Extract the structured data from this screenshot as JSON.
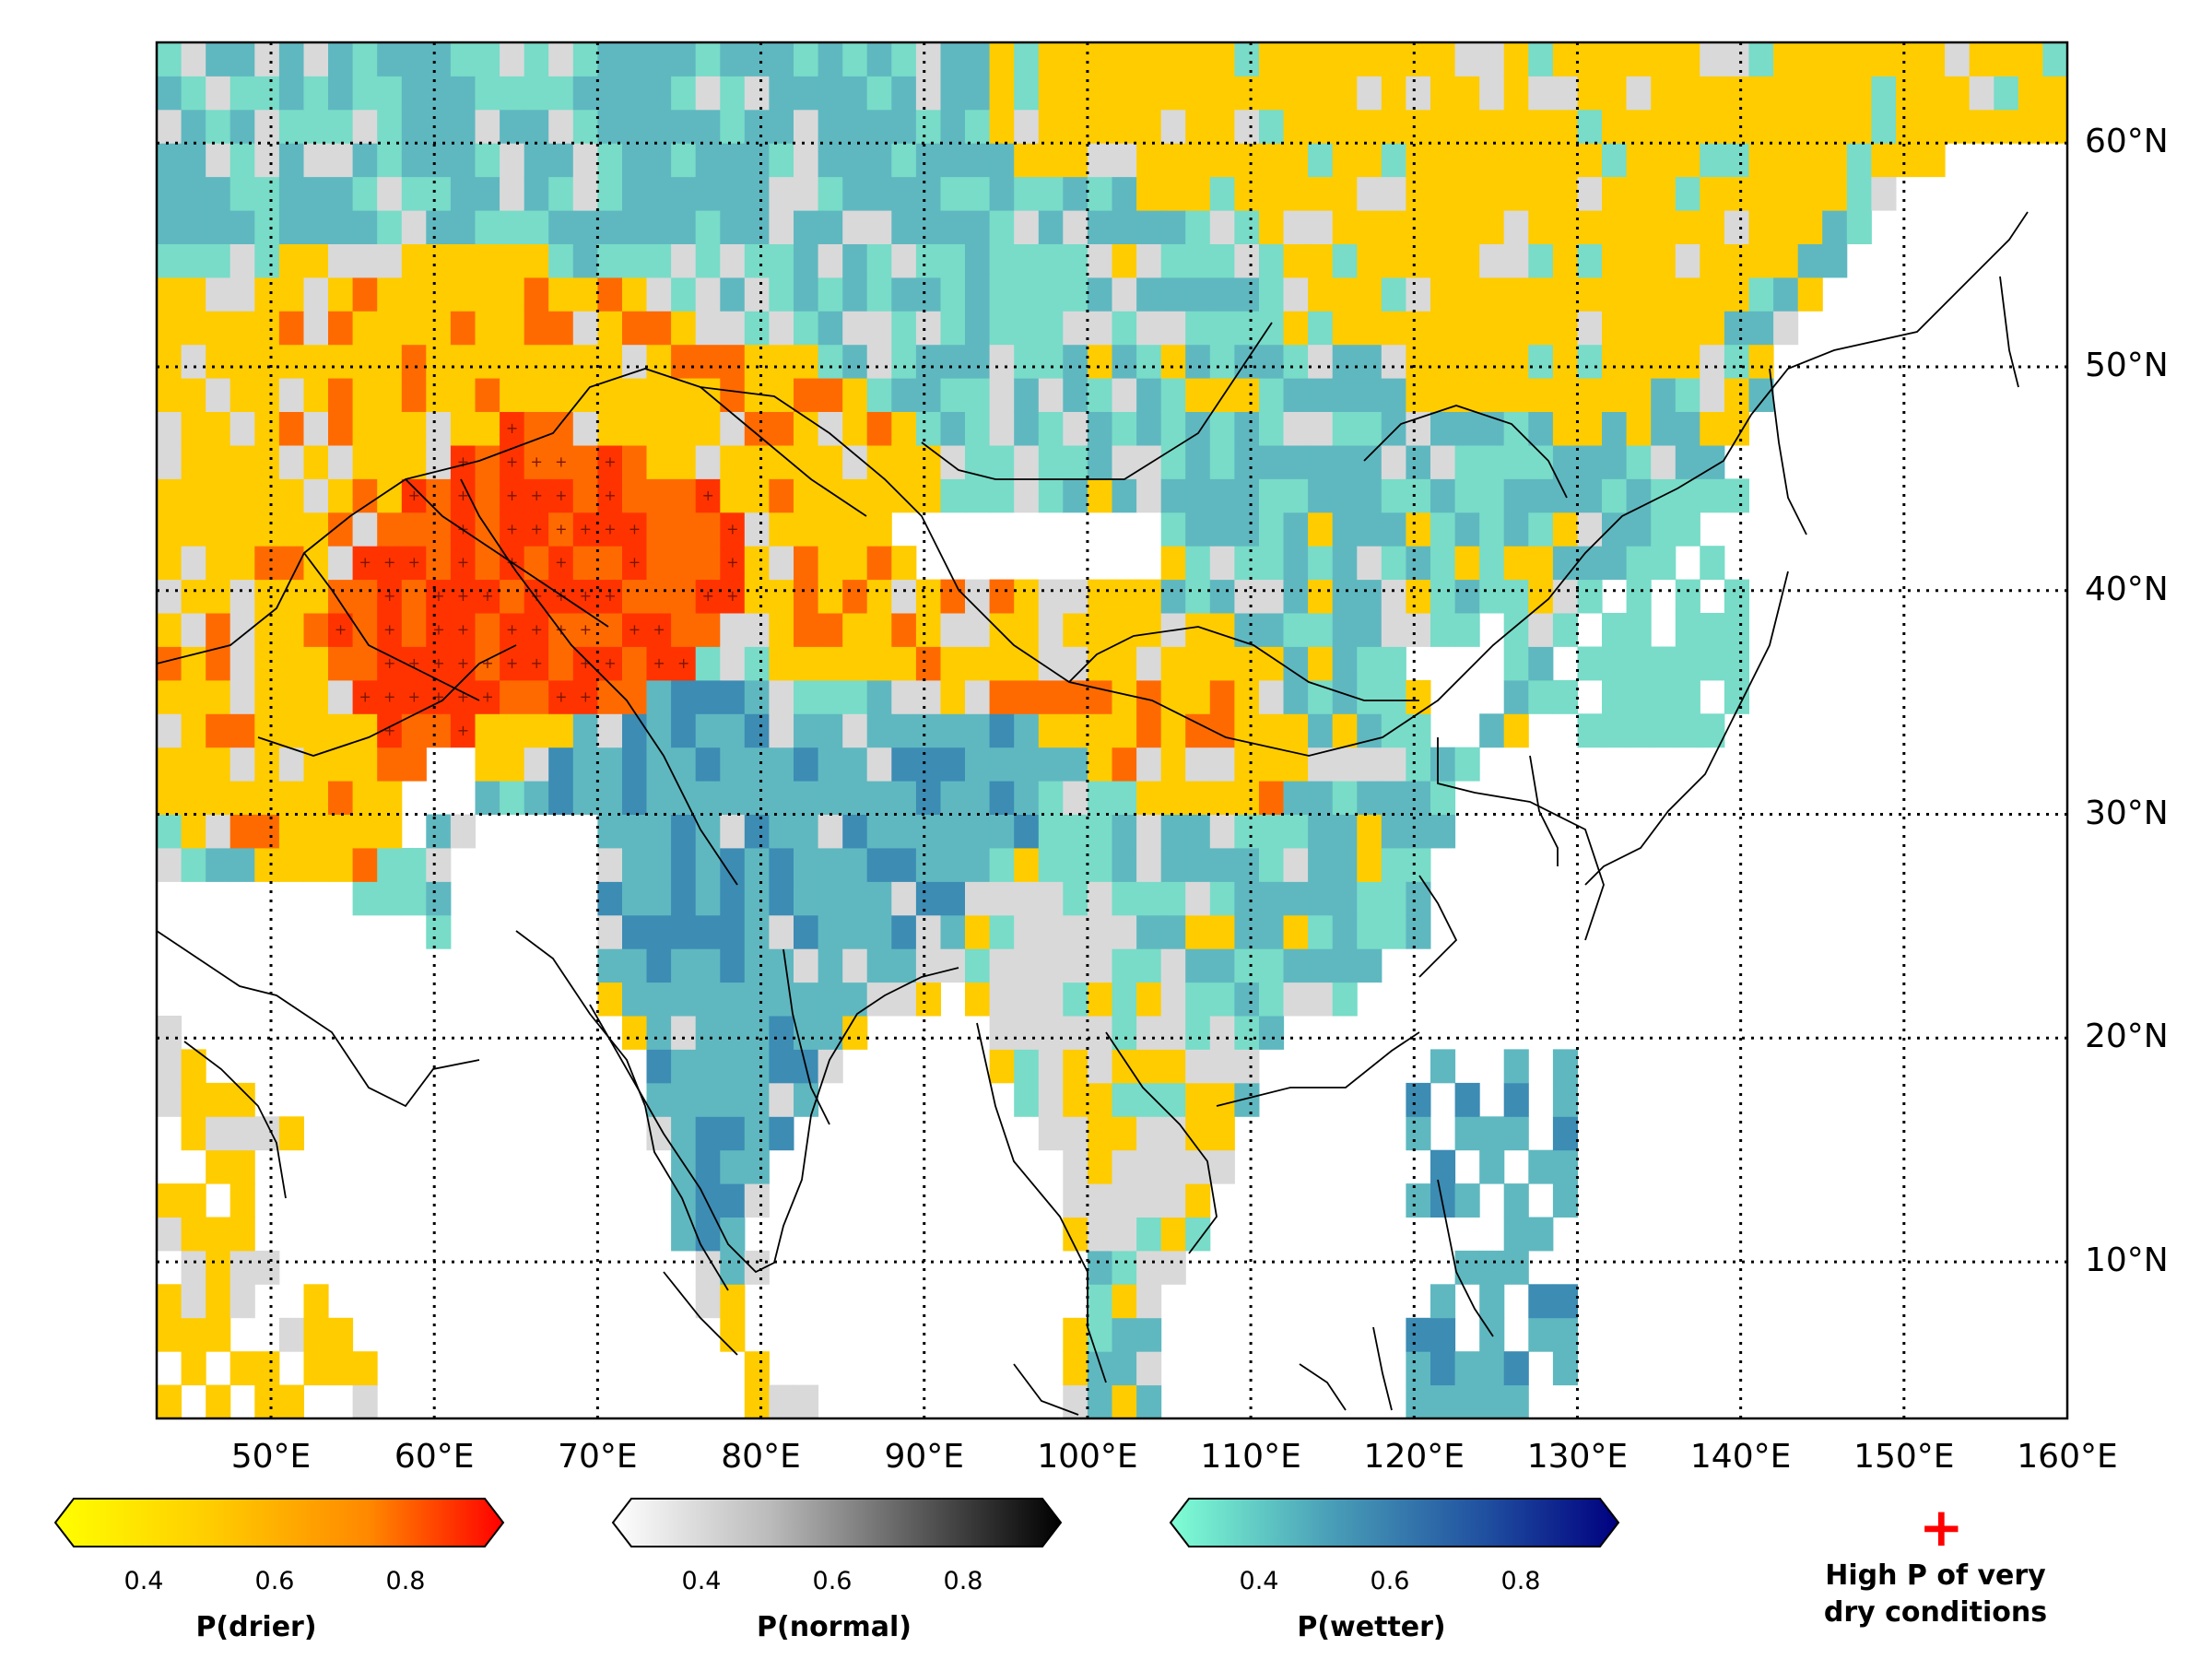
{
  "map": {
    "lon_range": [
      43,
      160
    ],
    "lat_range": [
      3,
      64.5
    ],
    "lon_labels": [
      "50°E",
      "60°E",
      "70°E",
      "80°E",
      "90°E",
      "100°E",
      "110°E",
      "120°E",
      "130°E",
      "140°E",
      "150°E",
      "160°E"
    ],
    "lat_labels": [
      "60°N",
      "50°N",
      "40°N",
      "30°N",
      "20°N",
      "10°N"
    ],
    "categories": {
      "drier": {
        "base": "#ffcc00",
        "strong": "#ff6a00",
        "extreme": "#ff3300"
      },
      "normal": "#d9d9d9",
      "wetter": {
        "light": "#78dcc8",
        "mid": "#5fb8c0",
        "dark": "#3c8cb4"
      },
      "no_data": "#ffffff"
    },
    "coastline_color": "#000000",
    "gridline_style": "dotted"
  },
  "colorbars": [
    {
      "title": "P(drier)",
      "ticks": [
        "0.4",
        "0.6",
        "0.8"
      ],
      "colors": [
        "#ffff00",
        "#ffcc00",
        "#ff8800",
        "#ff0000"
      ]
    },
    {
      "title": "P(normal)",
      "ticks": [
        "0.4",
        "0.6",
        "0.8"
      ],
      "colors": [
        "#ffffff",
        "#bbbbbb",
        "#555555",
        "#000000"
      ]
    },
    {
      "title": "P(wetter)",
      "ticks": [
        "0.4",
        "0.6",
        "0.8"
      ],
      "colors": [
        "#7fffd4",
        "#4aa0b8",
        "#2050a0",
        "#000080"
      ]
    }
  ],
  "legend": {
    "symbol": "+",
    "line1": "High P of very",
    "line2": "dry conditions",
    "symbol_color": "#ff0000"
  }
}
